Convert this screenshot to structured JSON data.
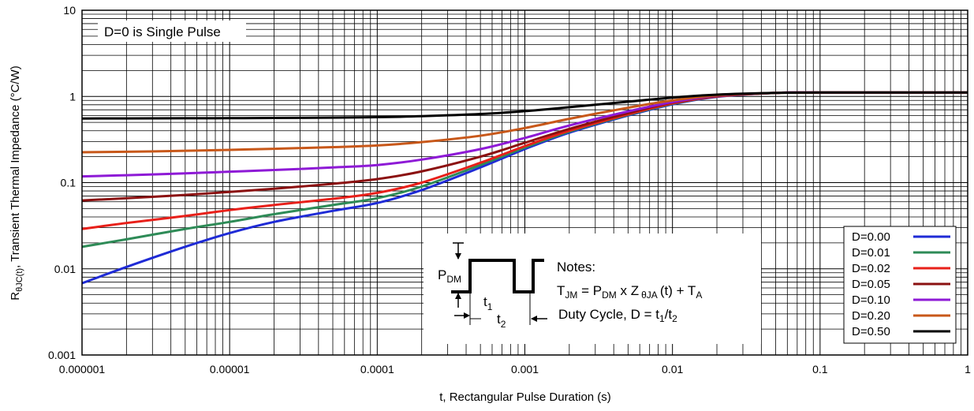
{
  "chart_data": {
    "type": "line",
    "title": "",
    "xlabel": "t, Rectangular Pulse Duration (s)",
    "ylabel_main": "R",
    "ylabel_sub": "θJC(t)",
    "ylabel_rest": ", Transient Thermal Impedance (°C/W)",
    "x_scale": "log",
    "y_scale": "log",
    "xlim": [
      1e-06,
      1
    ],
    "ylim": [
      0.001,
      10
    ],
    "x_ticks": [
      1e-06,
      1e-05,
      0.0001,
      0.001,
      0.01,
      0.1,
      1
    ],
    "x_tick_labels": [
      "0.000001",
      "0.00001",
      "0.0001",
      "0.001",
      "0.01",
      "0.1",
      "1"
    ],
    "y_ticks": [
      0.001,
      0.01,
      0.1,
      1,
      10
    ],
    "y_tick_labels": [
      "0.001",
      "0.01",
      "0.1",
      "1",
      "10"
    ],
    "grid": true,
    "legend_position": "bottom-right",
    "annotation": "D=0 is Single Pulse",
    "series": [
      {
        "name": "D=0.00",
        "color": "#1f2bd6",
        "x": [
          1e-06,
          2e-06,
          5e-06,
          1e-05,
          2e-05,
          5e-05,
          0.0001,
          0.0002,
          0.0005,
          0.001,
          0.002,
          0.005,
          0.01,
          0.02,
          0.05,
          0.1,
          0.2,
          0.5,
          1
        ],
        "y": [
          0.0068,
          0.0105,
          0.018,
          0.026,
          0.035,
          0.047,
          0.058,
          0.082,
          0.15,
          0.245,
          0.38,
          0.6,
          0.81,
          0.99,
          1.1,
          1.11,
          1.11,
          1.11,
          1.11
        ]
      },
      {
        "name": "D=0.01",
        "color": "#2e8b57",
        "x": [
          1e-06,
          2e-06,
          5e-06,
          1e-05,
          2e-05,
          5e-05,
          0.0001,
          0.0002,
          0.0005,
          0.001,
          0.002,
          0.005,
          0.01,
          0.02,
          0.05,
          0.1,
          0.2,
          0.5,
          1
        ],
        "y": [
          0.018,
          0.022,
          0.029,
          0.035,
          0.043,
          0.055,
          0.066,
          0.09,
          0.16,
          0.255,
          0.39,
          0.61,
          0.82,
          1.0,
          1.1,
          1.11,
          1.11,
          1.11,
          1.11
        ]
      },
      {
        "name": "D=0.02",
        "color": "#e8201a",
        "x": [
          1e-06,
          2e-06,
          5e-06,
          1e-05,
          2e-05,
          5e-05,
          0.0001,
          0.0002,
          0.0005,
          0.001,
          0.002,
          0.005,
          0.01,
          0.02,
          0.05,
          0.1,
          0.2,
          0.5,
          1
        ],
        "y": [
          0.029,
          0.034,
          0.041,
          0.048,
          0.055,
          0.065,
          0.076,
          0.1,
          0.17,
          0.265,
          0.4,
          0.62,
          0.83,
          1.0,
          1.1,
          1.11,
          1.11,
          1.11,
          1.11
        ]
      },
      {
        "name": "D=0.05",
        "color": "#8b1010",
        "x": [
          1e-06,
          2e-06,
          5e-06,
          1e-05,
          2e-05,
          5e-05,
          0.0001,
          0.0002,
          0.0005,
          0.001,
          0.002,
          0.005,
          0.01,
          0.02,
          0.05,
          0.1,
          0.2,
          0.5,
          1
        ],
        "y": [
          0.062,
          0.066,
          0.072,
          0.078,
          0.085,
          0.097,
          0.11,
          0.135,
          0.2,
          0.29,
          0.42,
          0.64,
          0.85,
          1.01,
          1.1,
          1.11,
          1.11,
          1.11,
          1.11
        ]
      },
      {
        "name": "D=0.10",
        "color": "#8e1ad6",
        "x": [
          1e-06,
          2e-06,
          5e-06,
          1e-05,
          2e-05,
          5e-05,
          0.0001,
          0.0002,
          0.0005,
          0.001,
          0.002,
          0.005,
          0.01,
          0.02,
          0.05,
          0.1,
          0.2,
          0.5,
          1
        ],
        "y": [
          0.118,
          0.122,
          0.128,
          0.134,
          0.14,
          0.15,
          0.16,
          0.185,
          0.245,
          0.33,
          0.46,
          0.67,
          0.86,
          1.02,
          1.1,
          1.11,
          1.11,
          1.11,
          1.11
        ]
      },
      {
        "name": "D=0.20",
        "color": "#c8581a",
        "x": [
          1e-06,
          2e-06,
          5e-06,
          1e-05,
          2e-05,
          5e-05,
          0.0001,
          0.0002,
          0.0005,
          0.001,
          0.002,
          0.005,
          0.01,
          0.02,
          0.05,
          0.1,
          0.2,
          0.5,
          1
        ],
        "y": [
          0.225,
          0.228,
          0.234,
          0.24,
          0.247,
          0.258,
          0.27,
          0.295,
          0.35,
          0.43,
          0.55,
          0.74,
          0.9,
          1.03,
          1.1,
          1.11,
          1.11,
          1.11,
          1.11
        ]
      },
      {
        "name": "D=0.50",
        "color": "#000000",
        "x": [
          1e-06,
          2e-06,
          5e-06,
          1e-05,
          2e-05,
          5e-05,
          0.0001,
          0.0002,
          0.0005,
          0.001,
          0.002,
          0.005,
          0.01,
          0.02,
          0.05,
          0.1,
          0.2,
          0.5,
          1
        ],
        "y": [
          0.555,
          0.556,
          0.558,
          0.56,
          0.563,
          0.568,
          0.575,
          0.59,
          0.625,
          0.675,
          0.75,
          0.87,
          0.97,
          1.05,
          1.1,
          1.11,
          1.11,
          1.11,
          1.11
        ]
      }
    ]
  },
  "notes": {
    "heading": "Notes:",
    "eq_t": "T",
    "eq_t_sub": "JM",
    "eq_mid": " = P",
    "eq_p_sub": "DM",
    "eq_z": " x Z",
    "eq_z_sub": "θJA",
    "eq_end": "(t) + T",
    "eq_ta_sub": "A",
    "duty": "Duty Cycle, D = t",
    "duty_sub1": "1",
    "duty_slash": "/t",
    "duty_sub2": "2",
    "pdm": "P",
    "pdm_sub": "DM",
    "t1": "t",
    "t1_sub": "1",
    "t2": "t",
    "t2_sub": "2"
  }
}
